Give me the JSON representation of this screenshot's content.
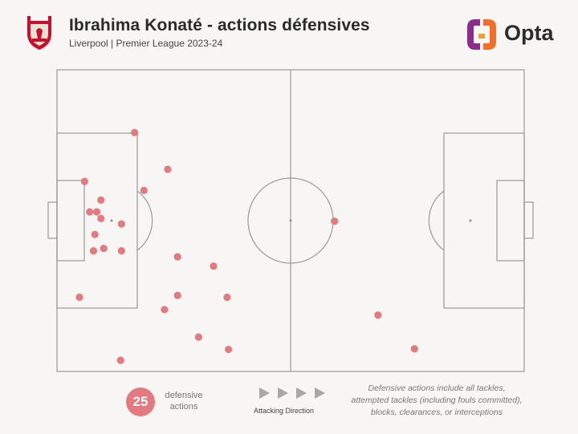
{
  "header": {
    "title": "Ibrahima Konaté - actions défensives",
    "subtitle": "Liverpool | Premier League 2023-24",
    "club_logo_icon": "liverpool-crest-icon",
    "brand_name": "Opta"
  },
  "chart_data": {
    "type": "scatter",
    "title": "Ibrahima Konaté - actions défensives",
    "subtitle": "Liverpool | Premier League 2023-24",
    "pitch": {
      "length": 100,
      "width": 100,
      "attacking_direction": "left-to-right"
    },
    "marker_color": "#e27a80",
    "points": [
      {
        "x": 16.6,
        "y": 20.8
      },
      {
        "x": 5.9,
        "y": 37.0
      },
      {
        "x": 23.7,
        "y": 33.0
      },
      {
        "x": 18.6,
        "y": 40.0
      },
      {
        "x": 9.4,
        "y": 43.2
      },
      {
        "x": 7.0,
        "y": 47.1
      },
      {
        "x": 8.5,
        "y": 47.1
      },
      {
        "x": 9.4,
        "y": 49.3
      },
      {
        "x": 13.8,
        "y": 51.1
      },
      {
        "x": 8.1,
        "y": 54.6
      },
      {
        "x": 7.8,
        "y": 60.0
      },
      {
        "x": 10.0,
        "y": 59.2
      },
      {
        "x": 13.8,
        "y": 60.0
      },
      {
        "x": 25.8,
        "y": 62.0
      },
      {
        "x": 33.5,
        "y": 65.1
      },
      {
        "x": 4.8,
        "y": 75.4
      },
      {
        "x": 25.8,
        "y": 74.8
      },
      {
        "x": 36.4,
        "y": 75.4
      },
      {
        "x": 23.0,
        "y": 79.5
      },
      {
        "x": 30.3,
        "y": 88.6
      },
      {
        "x": 36.7,
        "y": 92.7
      },
      {
        "x": 13.6,
        "y": 96.3
      },
      {
        "x": 68.7,
        "y": 81.3
      },
      {
        "x": 59.4,
        "y": 50.2
      },
      {
        "x": 76.5,
        "y": 92.5
      }
    ]
  },
  "summary": {
    "count": "25",
    "count_label": "defensive actions"
  },
  "legend": {
    "direction_label": "Attacking Direction",
    "note_line1": "Defensive actions include all tackles,",
    "note_line2": "attempted tackles (including fouls committed),",
    "note_line3": "blocks, clearances, or interceptions"
  },
  "colors": {
    "background": "#f7f6f4",
    "pitch_lines": "#9a9a9a",
    "marker": "#e27a80",
    "arrow": "#a8a8a8"
  }
}
